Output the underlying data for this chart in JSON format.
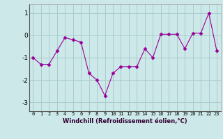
{
  "x": [
    0,
    1,
    2,
    3,
    4,
    5,
    6,
    7,
    8,
    9,
    10,
    11,
    12,
    13,
    14,
    15,
    16,
    17,
    18,
    19,
    20,
    21,
    22,
    23
  ],
  "y": [
    -1.0,
    -1.3,
    -1.3,
    -0.7,
    -0.1,
    -0.2,
    -0.3,
    -1.7,
    -2.0,
    -2.7,
    -1.7,
    -1.4,
    -1.4,
    -1.4,
    -0.6,
    -1.0,
    0.05,
    0.05,
    0.05,
    -0.6,
    0.1,
    0.1,
    1.0,
    -0.7
  ],
  "line_color": "#990099",
  "marker": "D",
  "marker_size": 2.5,
  "bg_color": "#cce8e8",
  "grid_color": "#aacccc",
  "xlabel": "Windchill (Refroidissement éolien,°C)",
  "xlim": [
    -0.5,
    23.5
  ],
  "ylim": [
    -3.4,
    1.4
  ],
  "yticks": [
    -3,
    -2,
    -1,
    0,
    1
  ],
  "xticks": [
    0,
    1,
    2,
    3,
    4,
    5,
    6,
    7,
    8,
    9,
    10,
    11,
    12,
    13,
    14,
    15,
    16,
    17,
    18,
    19,
    20,
    21,
    22,
    23
  ]
}
